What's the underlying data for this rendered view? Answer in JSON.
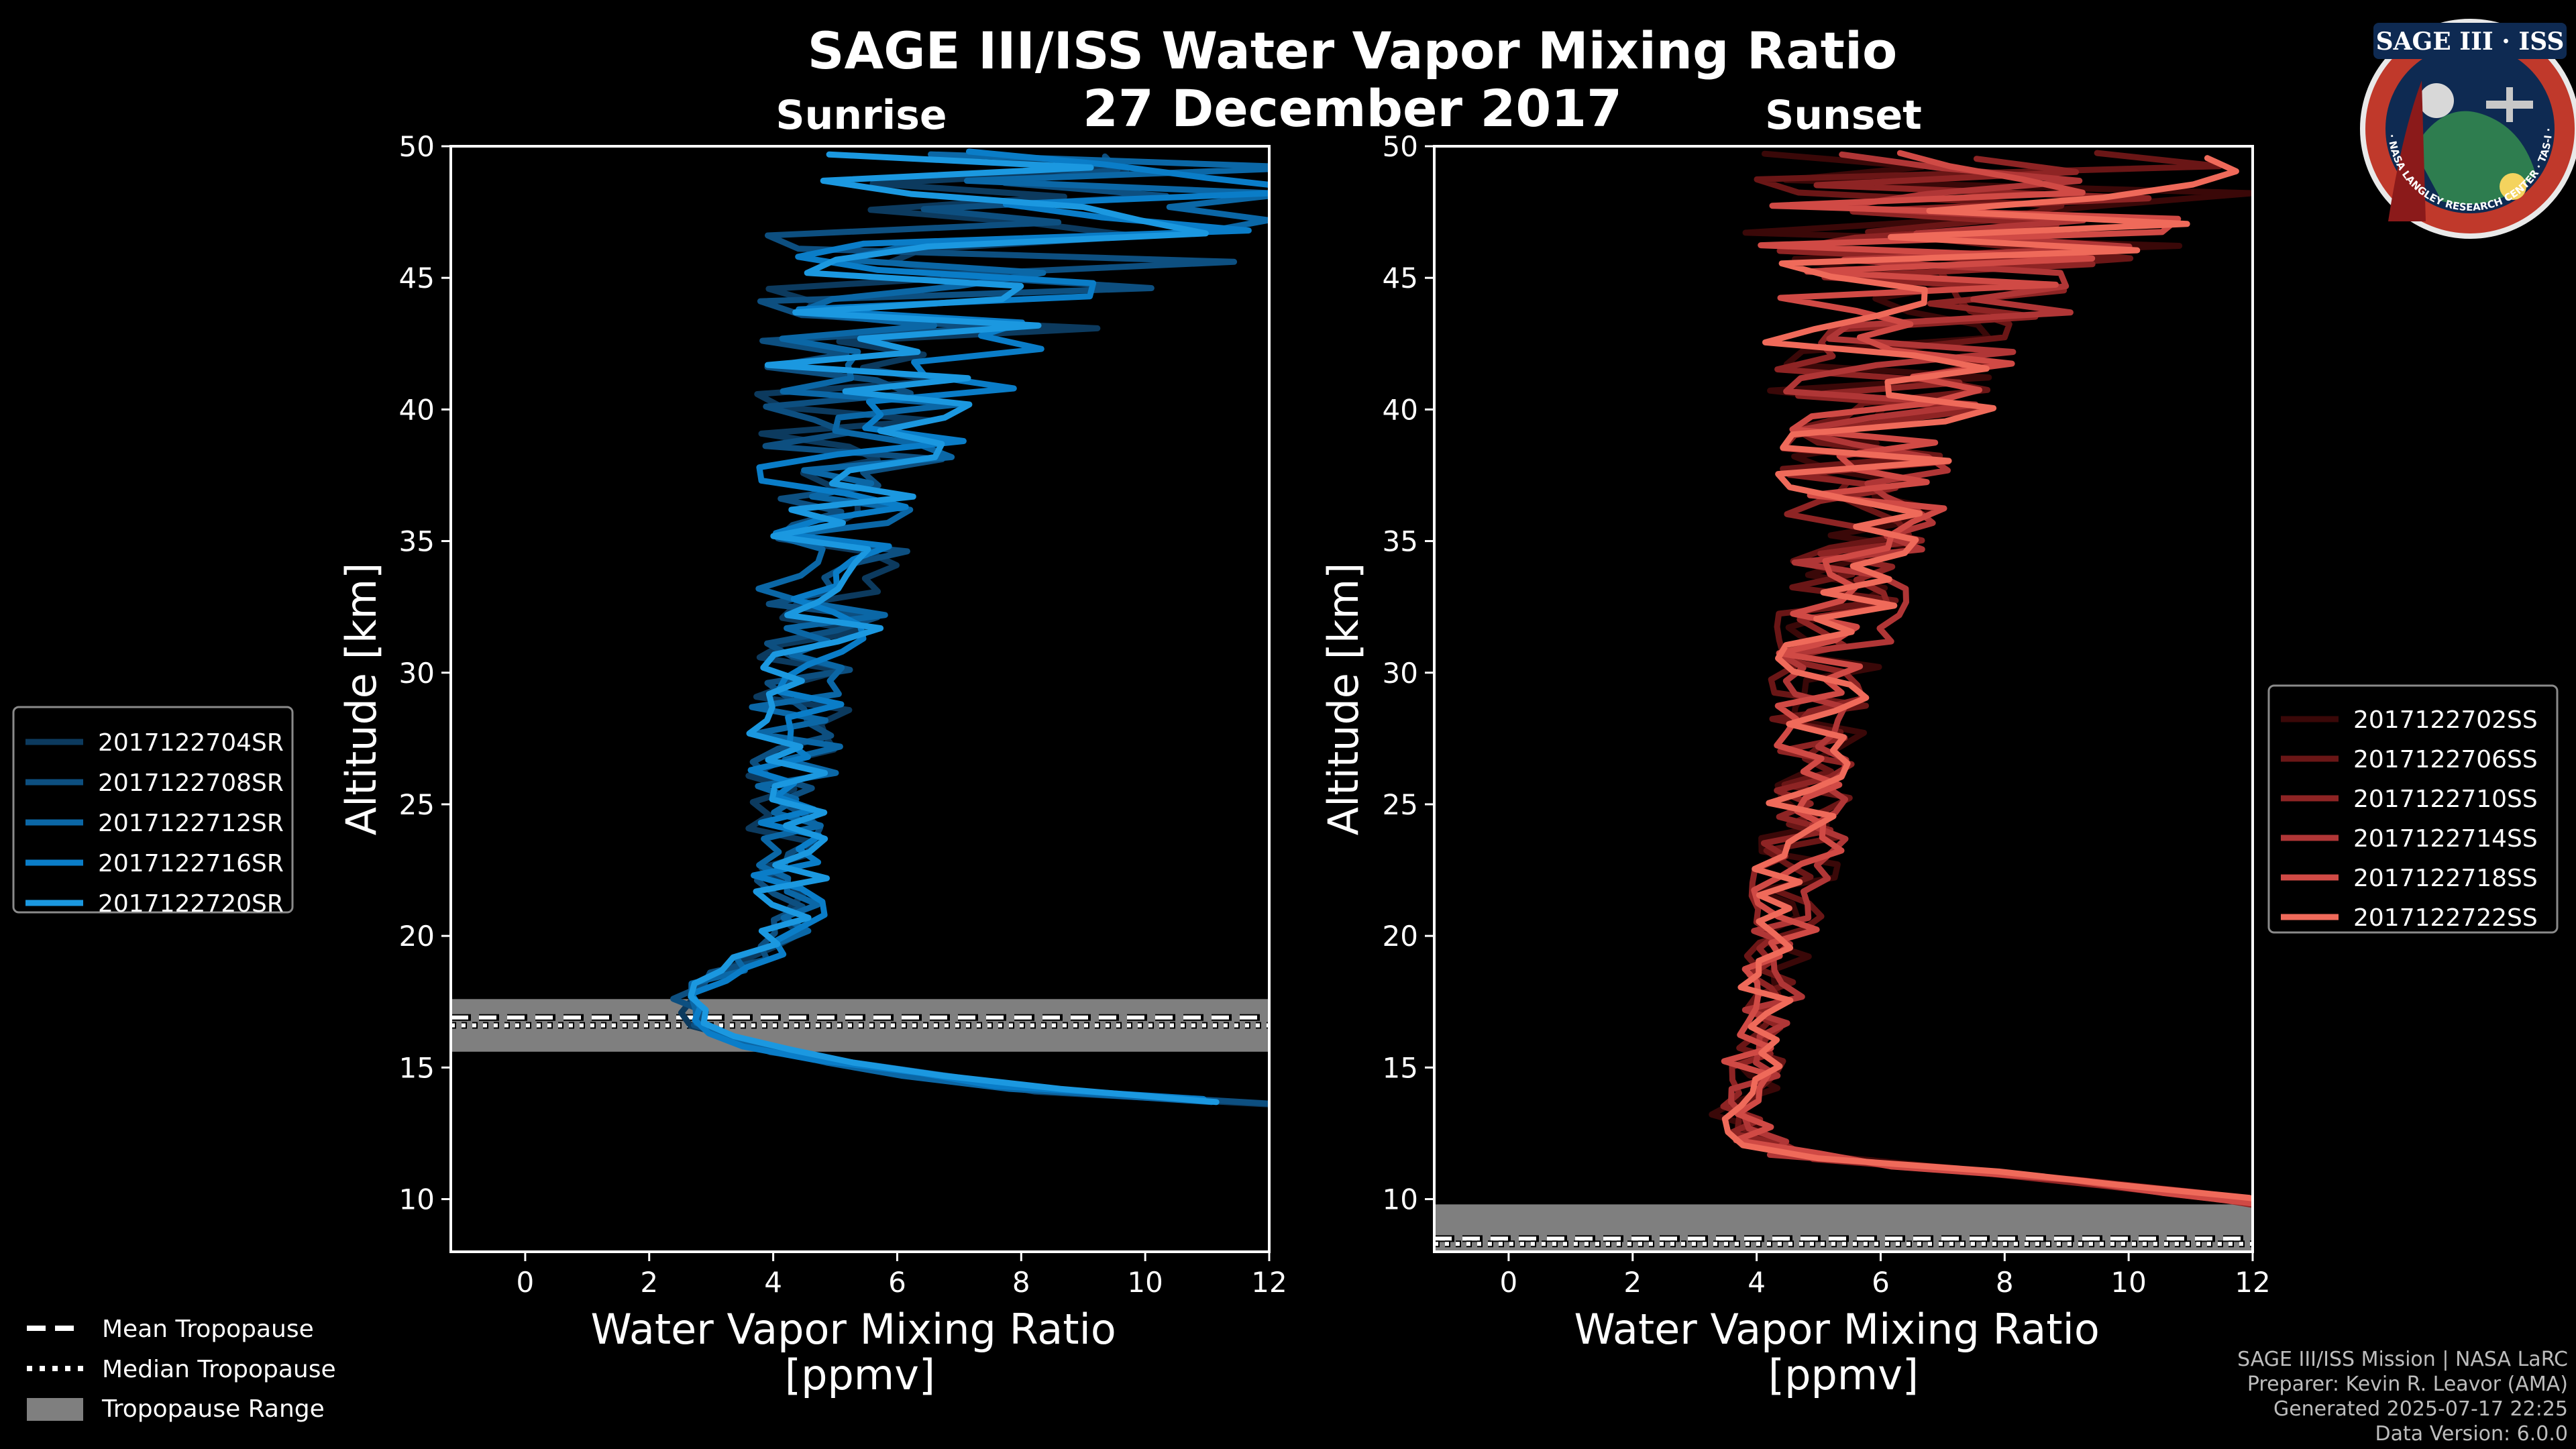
{
  "header": {
    "title": "SAGE III/ISS Water Vapor Mixing Ratio",
    "date": "27 December 2017",
    "left_subtitle": "Sunrise",
    "right_subtitle": "Sunset"
  },
  "logo": {
    "text": "SAGE III · ISS",
    "ring_text": "BALL · NASA LANGLEY RESEARCH CENTER · TAS-I · ESA"
  },
  "colors": {
    "background": "#000000",
    "sunrise": [
      "#0c3a5e",
      "#0d4f80",
      "#0b67a6",
      "#0a7dc8",
      "#1b98e0"
    ],
    "sunset": [
      "#3a0808",
      "#6a1616",
      "#8e2424",
      "#b03636",
      "#d04a45",
      "#ef6a5a"
    ],
    "tropo_range": "#7f7f7f"
  },
  "chart_data": [
    {
      "type": "line",
      "name": "Sunrise",
      "xlabel": "Water Vapor Mixing Ratio\n[ppmv]",
      "ylabel": "Altitude [km]",
      "xlim": [
        -1.2,
        12
      ],
      "ylim": [
        8,
        50
      ],
      "xticks": [
        0,
        2,
        4,
        6,
        8,
        10,
        12
      ],
      "yticks": [
        10,
        15,
        20,
        25,
        30,
        35,
        40,
        45,
        50
      ],
      "legend_position": "left",
      "tropopause": {
        "mean": 16.9,
        "median": 16.6,
        "range": [
          15.6,
          17.6
        ]
      },
      "series": [
        {
          "name": "2017122704SR",
          "seed": 11
        },
        {
          "name": "2017122708SR",
          "seed": 23
        },
        {
          "name": "2017122712SR",
          "seed": 37
        },
        {
          "name": "2017122716SR",
          "seed": 41
        },
        {
          "name": "2017122720SR",
          "seed": 59
        }
      ],
      "profile": {
        "altitude": [
          13.5,
          14,
          15,
          16,
          16.5,
          17,
          17.5,
          18,
          19,
          20,
          22,
          25,
          28,
          30,
          32,
          35,
          38,
          40,
          42,
          44,
          46,
          48,
          50
        ],
        "mean_ppmv": [
          13,
          9,
          5.5,
          3.5,
          3.0,
          2.8,
          2.5,
          3.0,
          3.8,
          4.5,
          4.5,
          4.4,
          4.6,
          4.8,
          5.0,
          5.2,
          5.5,
          5.8,
          6.2,
          7.0,
          8.0,
          8.5,
          9.0
        ],
        "noise_ppmv": [
          0.5,
          0.5,
          0.5,
          0.3,
          0.3,
          0.3,
          0.3,
          0.3,
          0.4,
          0.5,
          0.6,
          0.7,
          0.8,
          0.9,
          1.0,
          1.3,
          1.6,
          2.0,
          2.4,
          3.2,
          4.0,
          4.5,
          5.0
        ]
      }
    },
    {
      "type": "line",
      "name": "Sunset",
      "xlabel": "Water Vapor Mixing Ratio\n[ppmv]",
      "ylabel": "Altitude [km]",
      "xlim": [
        -1.2,
        12
      ],
      "ylim": [
        8,
        50
      ],
      "xticks": [
        0,
        2,
        4,
        6,
        8,
        10,
        12
      ],
      "yticks": [
        10,
        15,
        20,
        25,
        30,
        35,
        40,
        45,
        50
      ],
      "legend_position": "right",
      "tropopause": {
        "mean": 8.5,
        "median": 8.3,
        "range": [
          8.0,
          9.8
        ]
      },
      "series": [
        {
          "name": "2017122702SS",
          "seed": 71
        },
        {
          "name": "2017122706SS",
          "seed": 83
        },
        {
          "name": "2017122710SS",
          "seed": 97
        },
        {
          "name": "2017122714SS",
          "seed": 103
        },
        {
          "name": "2017122718SS",
          "seed": 127
        },
        {
          "name": "2017122722SS",
          "seed": 131
        }
      ],
      "profile": {
        "altitude": [
          9,
          10,
          11,
          11.5,
          12,
          13,
          15,
          17,
          19,
          20,
          22,
          25,
          28,
          30,
          32,
          35,
          38,
          40,
          42,
          44,
          46,
          48,
          50
        ],
        "mean_ppmv": [
          14,
          12,
          8,
          5.0,
          4.2,
          3.8,
          4.0,
          4.2,
          4.5,
          4.6,
          4.8,
          5.0,
          5.2,
          5.3,
          5.5,
          5.8,
          6.0,
          6.2,
          6.5,
          7.0,
          7.5,
          8.0,
          8.5
        ],
        "noise_ppmv": [
          0.5,
          0.5,
          0.4,
          0.4,
          0.5,
          0.5,
          0.5,
          0.5,
          0.5,
          0.6,
          0.7,
          0.7,
          0.8,
          0.9,
          1.0,
          1.2,
          1.5,
          1.8,
          2.2,
          2.8,
          3.5,
          4.2,
          5.0
        ]
      }
    }
  ],
  "tropopause_legend": {
    "mean": "Mean Tropopause",
    "median": "Median Tropopause",
    "range": "Tropopause Range"
  },
  "credits": {
    "line1": "SAGE III/ISS Mission | NASA LaRC",
    "line2": "Preparer: Kevin R. Leavor (AMA)",
    "line3": "Generated 2025-07-17 22:25",
    "line4": "Data Version: 6.0.0"
  }
}
